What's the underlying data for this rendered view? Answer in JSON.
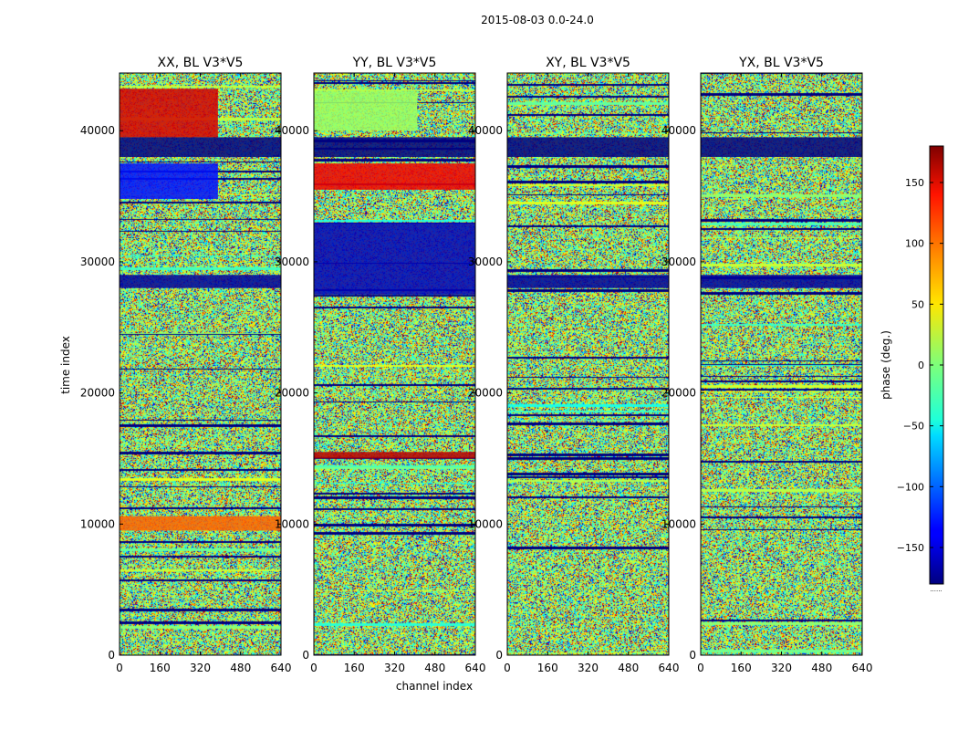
{
  "chart_data": {
    "type": "heatmap",
    "suptitle": "2015-08-03 0.0-24.0",
    "xlabel": "channel index",
    "ylabel": "time index",
    "xlim": [
      0,
      640
    ],
    "ylim": [
      0,
      44400
    ],
    "x_ticks": [
      0,
      160,
      320,
      480,
      640
    ],
    "x_tick_labels": [
      "0",
      "160",
      "320",
      "480",
      "640"
    ],
    "y_ticks": [
      0,
      10000,
      20000,
      30000,
      40000
    ],
    "y_tick_labels": [
      "0",
      "10000",
      "20000",
      "30000",
      "40000"
    ],
    "colorbar": {
      "label": "phase (deg.)",
      "range": [
        -180,
        180
      ],
      "ticks": [
        150,
        100,
        50,
        0,
        -50,
        -100,
        -150
      ],
      "tick_labels": [
        "150",
        "100",
        "50",
        "0",
        "−50",
        "−100",
        "−150"
      ],
      "colormap": "jet",
      "footer": "......"
    },
    "panels": [
      {
        "title": "XX, BL V3*V5",
        "bands": [
          {
            "y0": 39500,
            "y1": 43200,
            "x0": 0,
            "x1": 390,
            "phase": 150
          },
          {
            "y0": 38000,
            "y1": 39500,
            "x0": 0,
            "x1": 640,
            "phase": -180
          },
          {
            "y0": 34800,
            "y1": 37500,
            "x0": 0,
            "x1": 390,
            "phase": -130
          },
          {
            "y0": 28000,
            "y1": 29000,
            "x0": 0,
            "x1": 640,
            "phase": -170
          },
          {
            "y0": 9500,
            "y1": 10600,
            "x0": 0,
            "x1": 640,
            "phase": 100
          }
        ]
      },
      {
        "title": "YY, BL V3*V5",
        "bands": [
          {
            "y0": 40000,
            "y1": 43000,
            "x0": 0,
            "x1": 410,
            "phase": 10
          },
          {
            "y0": 38000,
            "y1": 39500,
            "x0": 0,
            "x1": 640,
            "phase": -180
          },
          {
            "y0": 35500,
            "y1": 37500,
            "x0": 0,
            "x1": 640,
            "phase": 140
          },
          {
            "y0": 27500,
            "y1": 33000,
            "x0": 0,
            "x1": 640,
            "phase": -160
          },
          {
            "y0": 15000,
            "y1": 15500,
            "x0": 0,
            "x1": 640,
            "phase": 160
          }
        ]
      },
      {
        "title": "XY, BL V3*V5",
        "bands": [
          {
            "y0": 38000,
            "y1": 39500,
            "x0": 0,
            "x1": 640,
            "phase": -180
          },
          {
            "y0": 28000,
            "y1": 29000,
            "x0": 0,
            "x1": 640,
            "phase": -170
          }
        ]
      },
      {
        "title": "YX, BL V3*V5",
        "bands": [
          {
            "y0": 38000,
            "y1": 39500,
            "x0": 0,
            "x1": 640,
            "phase": -180
          },
          {
            "y0": 28000,
            "y1": 29000,
            "x0": 0,
            "x1": 640,
            "phase": -170
          }
        ]
      }
    ]
  }
}
